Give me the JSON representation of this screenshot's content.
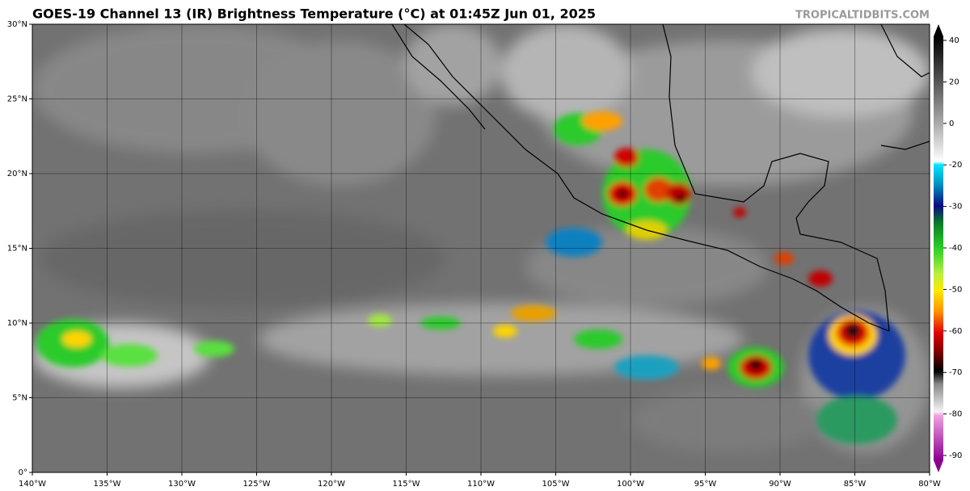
{
  "map": {
    "title": "GOES-19 Channel 13 (IR) Brightness Temperature (°C) at 01:45Z Jun 01, 2025",
    "credit": "TROPICALTIDBITS.COM",
    "lon_range": [
      -140,
      -80
    ],
    "lat_range": [
      0,
      30
    ],
    "lat_ticks": [
      {
        "value": 0,
        "label": "0°"
      },
      {
        "value": 5,
        "label": "5°N"
      },
      {
        "value": 10,
        "label": "10°N"
      },
      {
        "value": 15,
        "label": "15°N"
      },
      {
        "value": 20,
        "label": "20°N"
      },
      {
        "value": 25,
        "label": "25°N"
      },
      {
        "value": 30,
        "label": "30°N"
      }
    ],
    "lon_ticks": [
      {
        "value": -140,
        "label": "140°W"
      },
      {
        "value": -135,
        "label": "135°W"
      },
      {
        "value": -130,
        "label": "130°W"
      },
      {
        "value": -125,
        "label": "125°W"
      },
      {
        "value": -120,
        "label": "120°W"
      },
      {
        "value": -115,
        "label": "115°W"
      },
      {
        "value": -110,
        "label": "110°W"
      },
      {
        "value": -105,
        "label": "105°W"
      },
      {
        "value": -100,
        "label": "100°W"
      },
      {
        "value": -95,
        "label": "95°W"
      },
      {
        "value": -90,
        "label": "90°W"
      },
      {
        "value": -85,
        "label": "85°W"
      },
      {
        "value": -80,
        "label": "80°W"
      }
    ],
    "colorbar_ticks": [
      40,
      20,
      0,
      -20,
      -30,
      -40,
      -50,
      -60,
      -70,
      -80,
      -90
    ]
  }
}
